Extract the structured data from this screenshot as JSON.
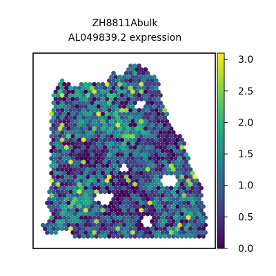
{
  "chart_data": {
    "type": "heatmap",
    "subtype": "hexbin spatial expression map",
    "title_lines": [
      "ZH8811Abulk",
      "AL049839.2 expression"
    ],
    "xlabel": "",
    "ylabel": "",
    "colorbar": {
      "colormap": "viridis",
      "vmin": 0.0,
      "vmax": 3.1,
      "ticks": [
        0.0,
        0.5,
        1.0,
        1.5,
        2.0,
        2.5,
        3.0
      ],
      "tick_labels": [
        "0.0",
        "0.5",
        "1.0",
        "1.5",
        "2.0",
        "2.5",
        "3.0"
      ]
    },
    "grid": false,
    "legend": "none"
  }
}
